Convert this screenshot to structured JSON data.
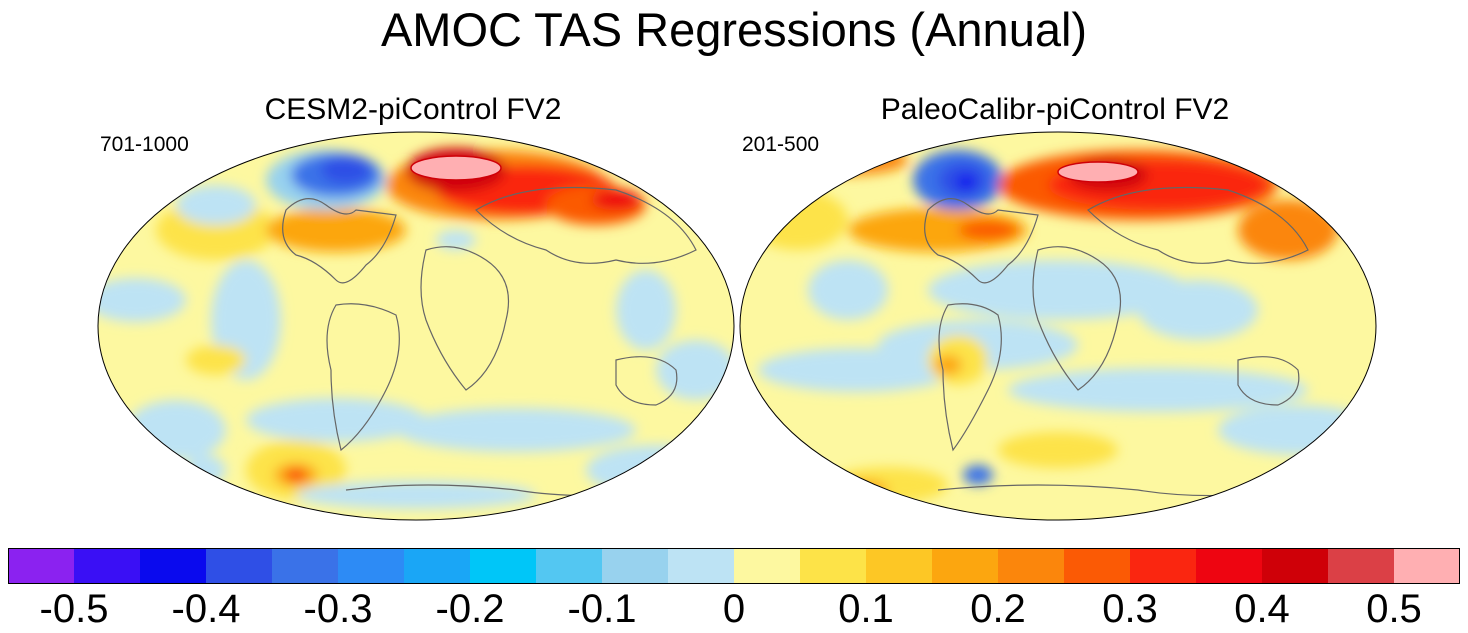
{
  "title": "AMOC TAS Regressions (Annual)",
  "panels": [
    {
      "title": "CESM2-piControl FV2",
      "years": "701-1000"
    },
    {
      "title": "PaleoCalibr-piControl FV2",
      "years": "201-500"
    }
  ],
  "colorbar": {
    "colors": [
      "#8b22f0",
      "#3a0ff5",
      "#0a0aee",
      "#2f4fe6",
      "#3a72e8",
      "#2d8bf5",
      "#1aa6f6",
      "#00c6f8",
      "#53c7f2",
      "#98d2ee",
      "#bde3f4",
      "#fdf8a0",
      "#fde348",
      "#fdc725",
      "#fca60f",
      "#fb860c",
      "#fb5a05",
      "#fa2610",
      "#ee0511",
      "#cf0008",
      "#db4046",
      "#ffafb2"
    ],
    "tick_labels": [
      "-0.5",
      "-0.4",
      "-0.3",
      "-0.2",
      "-0.1",
      "0",
      "0.1",
      "0.2",
      "0.3",
      "0.4",
      "0.5"
    ]
  },
  "chart_data": {
    "type": "heatmap",
    "title": "AMOC TAS Regressions (Annual)",
    "variable": "TAS regression on AMOC",
    "levels": [
      -0.5,
      -0.45,
      -0.4,
      -0.35,
      -0.3,
      -0.25,
      -0.2,
      -0.15,
      -0.1,
      -0.05,
      0,
      0.05,
      0.1,
      0.15,
      0.2,
      0.25,
      0.3,
      0.35,
      0.4,
      0.45,
      0.5
    ],
    "panels": [
      {
        "name": "CESM2-piControl FV2",
        "years": "701-1000"
      },
      {
        "name": "PaleoCalibr-piControl FV2",
        "years": "201-500"
      }
    ]
  }
}
